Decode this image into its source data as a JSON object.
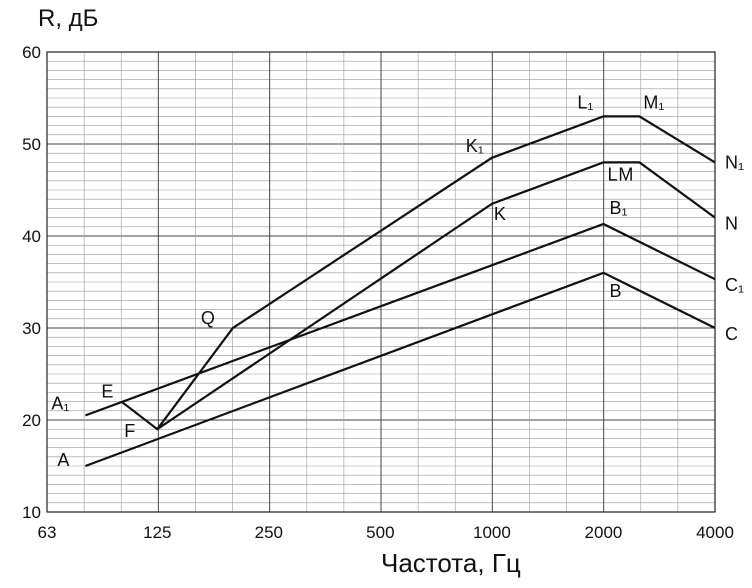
{
  "chart_data": {
    "type": "line",
    "title": "",
    "xlabel": "Частота, Гц",
    "ylabel": "R, дБ",
    "x_scale": "log2",
    "xlim": [
      63,
      4000
    ],
    "ylim": [
      10,
      60
    ],
    "xticks": [
      "63",
      "125",
      "250",
      "500",
      "1000",
      "2000",
      "4000"
    ],
    "yticks": [
      "10",
      "20",
      "30",
      "40",
      "50",
      "60"
    ],
    "grid": true,
    "legend": "none",
    "series": [
      {
        "name": "",
        "points": [
          {
            "x": 80,
            "y": 15,
            "label": "A"
          },
          {
            "x": 2000,
            "y": 36,
            "label": "B"
          },
          {
            "x": 4000,
            "y": 30,
            "label": "C"
          }
        ]
      },
      {
        "name": "",
        "points": [
          {
            "x": 80,
            "y": 20.5,
            "label": "A₁"
          },
          {
            "x": 2000,
            "y": 41.3,
            "label": "B₁"
          },
          {
            "x": 4000,
            "y": 35.3,
            "label": "C₁"
          }
        ]
      },
      {
        "name": "",
        "points": [
          {
            "x": 100,
            "y": 22,
            "label": "E"
          },
          {
            "x": 125,
            "y": 19,
            "label": "F"
          },
          {
            "x": 1000,
            "y": 43.5,
            "label": "K"
          },
          {
            "x": 2000,
            "y": 48,
            "label": "L"
          },
          {
            "x": 2500,
            "y": 48,
            "label": "M"
          },
          {
            "x": 4000,
            "y": 42,
            "label": "N"
          }
        ]
      },
      {
        "name": "",
        "points": [
          {
            "x": 125,
            "y": 19,
            "label": ""
          },
          {
            "x": 200,
            "y": 30,
            "label": "Q"
          },
          {
            "x": 1000,
            "y": 48.5,
            "label": "K₁"
          },
          {
            "x": 2000,
            "y": 53,
            "label": "L₁"
          },
          {
            "x": 2500,
            "y": 53,
            "label": "M₁"
          },
          {
            "x": 4000,
            "y": 48,
            "label": "N₁"
          }
        ]
      }
    ]
  }
}
